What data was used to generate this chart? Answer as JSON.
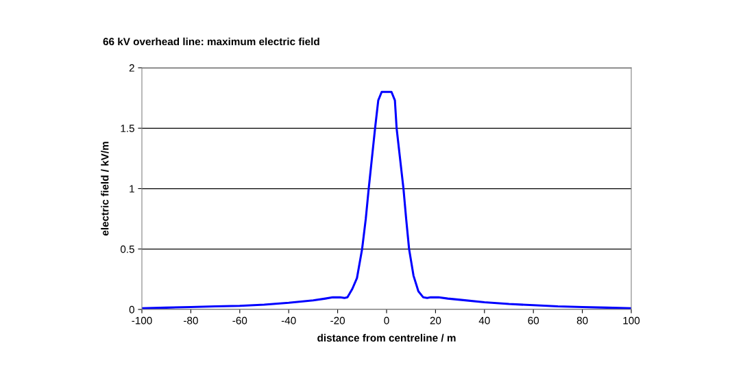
{
  "chart_data": {
    "type": "line",
    "title": "66 kV overhead line: maximum electric field",
    "xlabel": "distance from centreline / m",
    "ylabel": "electric field / kV/m",
    "series": [
      {
        "color": "#0000ff",
        "x": [
          -100,
          -90,
          -80,
          -70,
          -60,
          -50,
          -40,
          -30,
          -25,
          -22,
          -19,
          -17.2,
          -16,
          -14,
          -12.1,
          -10,
          -8.5,
          -7.3,
          -6,
          -4.7,
          -3.4,
          -2,
          0,
          2,
          3.4,
          4.1,
          5.5,
          6.9,
          8,
          9.2,
          11,
          13,
          15,
          16.6,
          18,
          21.2,
          25,
          30,
          40,
          50,
          60,
          70,
          80,
          90,
          100
        ],
        "values": [
          0.01,
          0.015,
          0.02,
          0.025,
          0.03,
          0.04,
          0.055,
          0.075,
          0.09,
          0.1,
          0.1,
          0.095,
          0.1,
          0.17,
          0.26,
          0.5,
          0.75,
          1.0,
          1.25,
          1.5,
          1.73,
          1.8,
          1.8,
          1.8,
          1.73,
          1.5,
          1.25,
          1.0,
          0.75,
          0.5,
          0.28,
          0.15,
          0.1,
          0.095,
          0.1,
          0.1,
          0.09,
          0.08,
          0.06,
          0.045,
          0.035,
          0.025,
          0.02,
          0.015,
          0.01
        ]
      }
    ],
    "xlim": [
      -100,
      100
    ],
    "xticks": [
      -100,
      -80,
      -60,
      -40,
      -20,
      0,
      20,
      40,
      60,
      80,
      100
    ],
    "ylim": [
      0,
      2
    ],
    "yticks": [
      0,
      0.5,
      1,
      1.5,
      2
    ],
    "grid": "y",
    "marker": "none",
    "line_style": "solid"
  }
}
